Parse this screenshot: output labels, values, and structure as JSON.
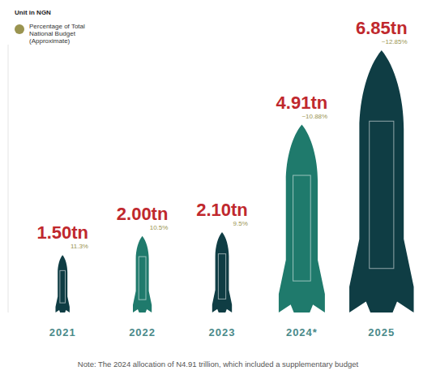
{
  "chart_data": {
    "type": "bar",
    "subtitle": "Unit in NGN",
    "categories": [
      "2021",
      "2022",
      "2023",
      "2024*",
      "2025"
    ],
    "values": [
      1.5,
      2.0,
      2.1,
      4.91,
      6.85
    ],
    "value_labels": [
      "1.50tn",
      "2.00tn",
      "2.10tn",
      "4.91tn",
      "6.85tn"
    ],
    "colors": [
      "#0f3d44",
      "#1f7a6c",
      "#0f3d44",
      "#1f7a6c",
      "#0f3d44"
    ],
    "data_labels": true,
    "ylim": [
      0,
      7
    ],
    "tick_labels": "x",
    "grid": false,
    "legend": "top-left",
    "share": {
      "name": "Percentage of Total National Budget (Approximate)",
      "color": "#9a9450",
      "values": [
        11.3,
        10.5,
        9.5,
        10.88,
        12.85
      ],
      "value_labels": [
        "11.3%",
        "10.5%",
        "9.5%",
        "~10.88%",
        "~12.85%"
      ]
    },
    "note": "Note: The 2024 allocation of N4.91 trillion, which included a supplementary budget"
  }
}
